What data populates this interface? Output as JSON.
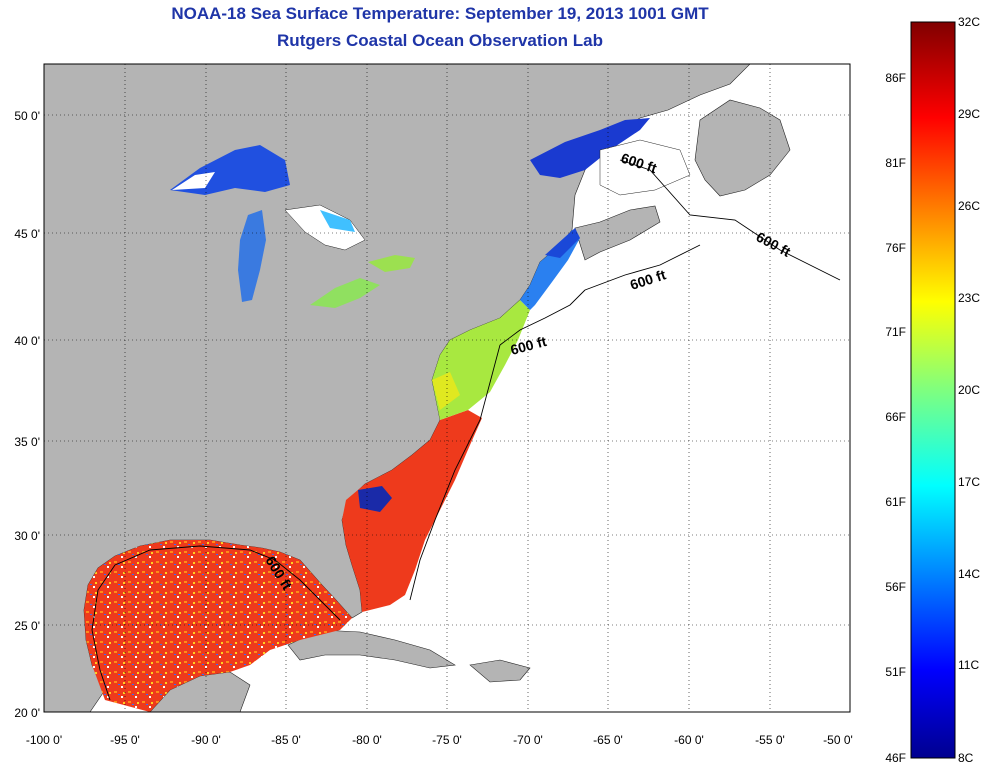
{
  "title": "NOAA-18 Sea Surface Temperature:  September 19, 2013 1001 GMT",
  "subtitle": "Rutgers Coastal Ocean Observation Lab",
  "x_ticks": [
    "-100 0'",
    "-95 0'",
    "-90 0'",
    "-85 0'",
    "-80 0'",
    "-75 0'",
    "-70 0'",
    "-65 0'",
    "-60 0'",
    "-55 0'",
    "-50 0'"
  ],
  "y_ticks": [
    "20 0'",
    "25 0'",
    "30 0'",
    "35 0'",
    "40 0'",
    "45 0'",
    "50 0'"
  ],
  "depth_contour_labels": [
    "600 ft",
    "600 ft",
    "600 ft",
    "600 ft",
    "600 ft"
  ],
  "colorbar": {
    "celsius_labels": [
      "32C",
      "29C",
      "26C",
      "23C",
      "20C",
      "17C",
      "14C",
      "11C",
      "8C"
    ],
    "fahrenheit_labels": [
      "86F",
      "81F",
      "76F",
      "71F",
      "66F",
      "61F",
      "56F",
      "51F",
      "46F"
    ],
    "colormap": "jet"
  },
  "colors": {
    "title": "#1f35a8",
    "land": "#b4b4b4",
    "ocean_nodata": "#ffffff",
    "grid": "#000000"
  }
}
